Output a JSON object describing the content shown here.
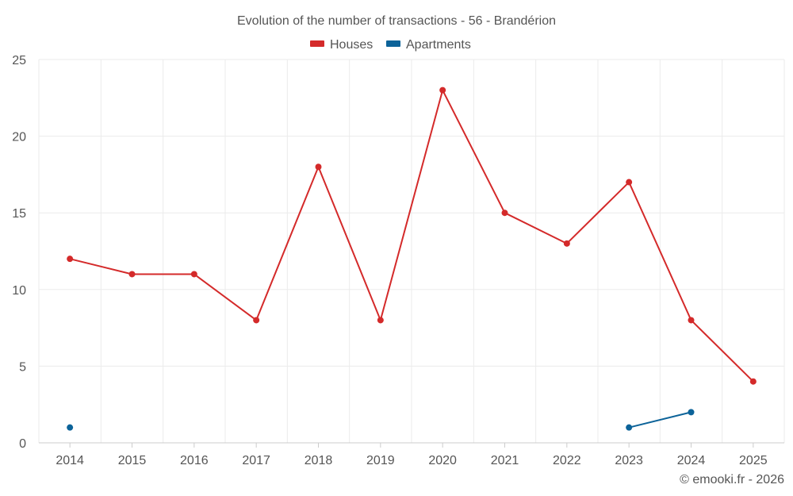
{
  "chart_data": {
    "type": "line",
    "title": "Evolution of the number of transactions - 56 - Brandérion",
    "categories": [
      "2014",
      "2015",
      "2016",
      "2017",
      "2018",
      "2019",
      "2020",
      "2021",
      "2022",
      "2023",
      "2024",
      "2025"
    ],
    "series": [
      {
        "name": "Houses",
        "color": "#d42a2a",
        "values": [
          12,
          11,
          11,
          8,
          18,
          8,
          23,
          15,
          13,
          17,
          8,
          4
        ]
      },
      {
        "name": "Apartments",
        "color": "#0c6399",
        "values": [
          1,
          null,
          null,
          null,
          null,
          null,
          null,
          null,
          null,
          1,
          2,
          null
        ]
      }
    ],
    "ylim": [
      0,
      25
    ],
    "yticks": [
      0,
      5,
      10,
      15,
      20,
      25
    ],
    "xlabel": "",
    "ylabel": "",
    "grid": true,
    "legend_position": "top-center"
  },
  "credit": "© emooki.fr - 2026"
}
